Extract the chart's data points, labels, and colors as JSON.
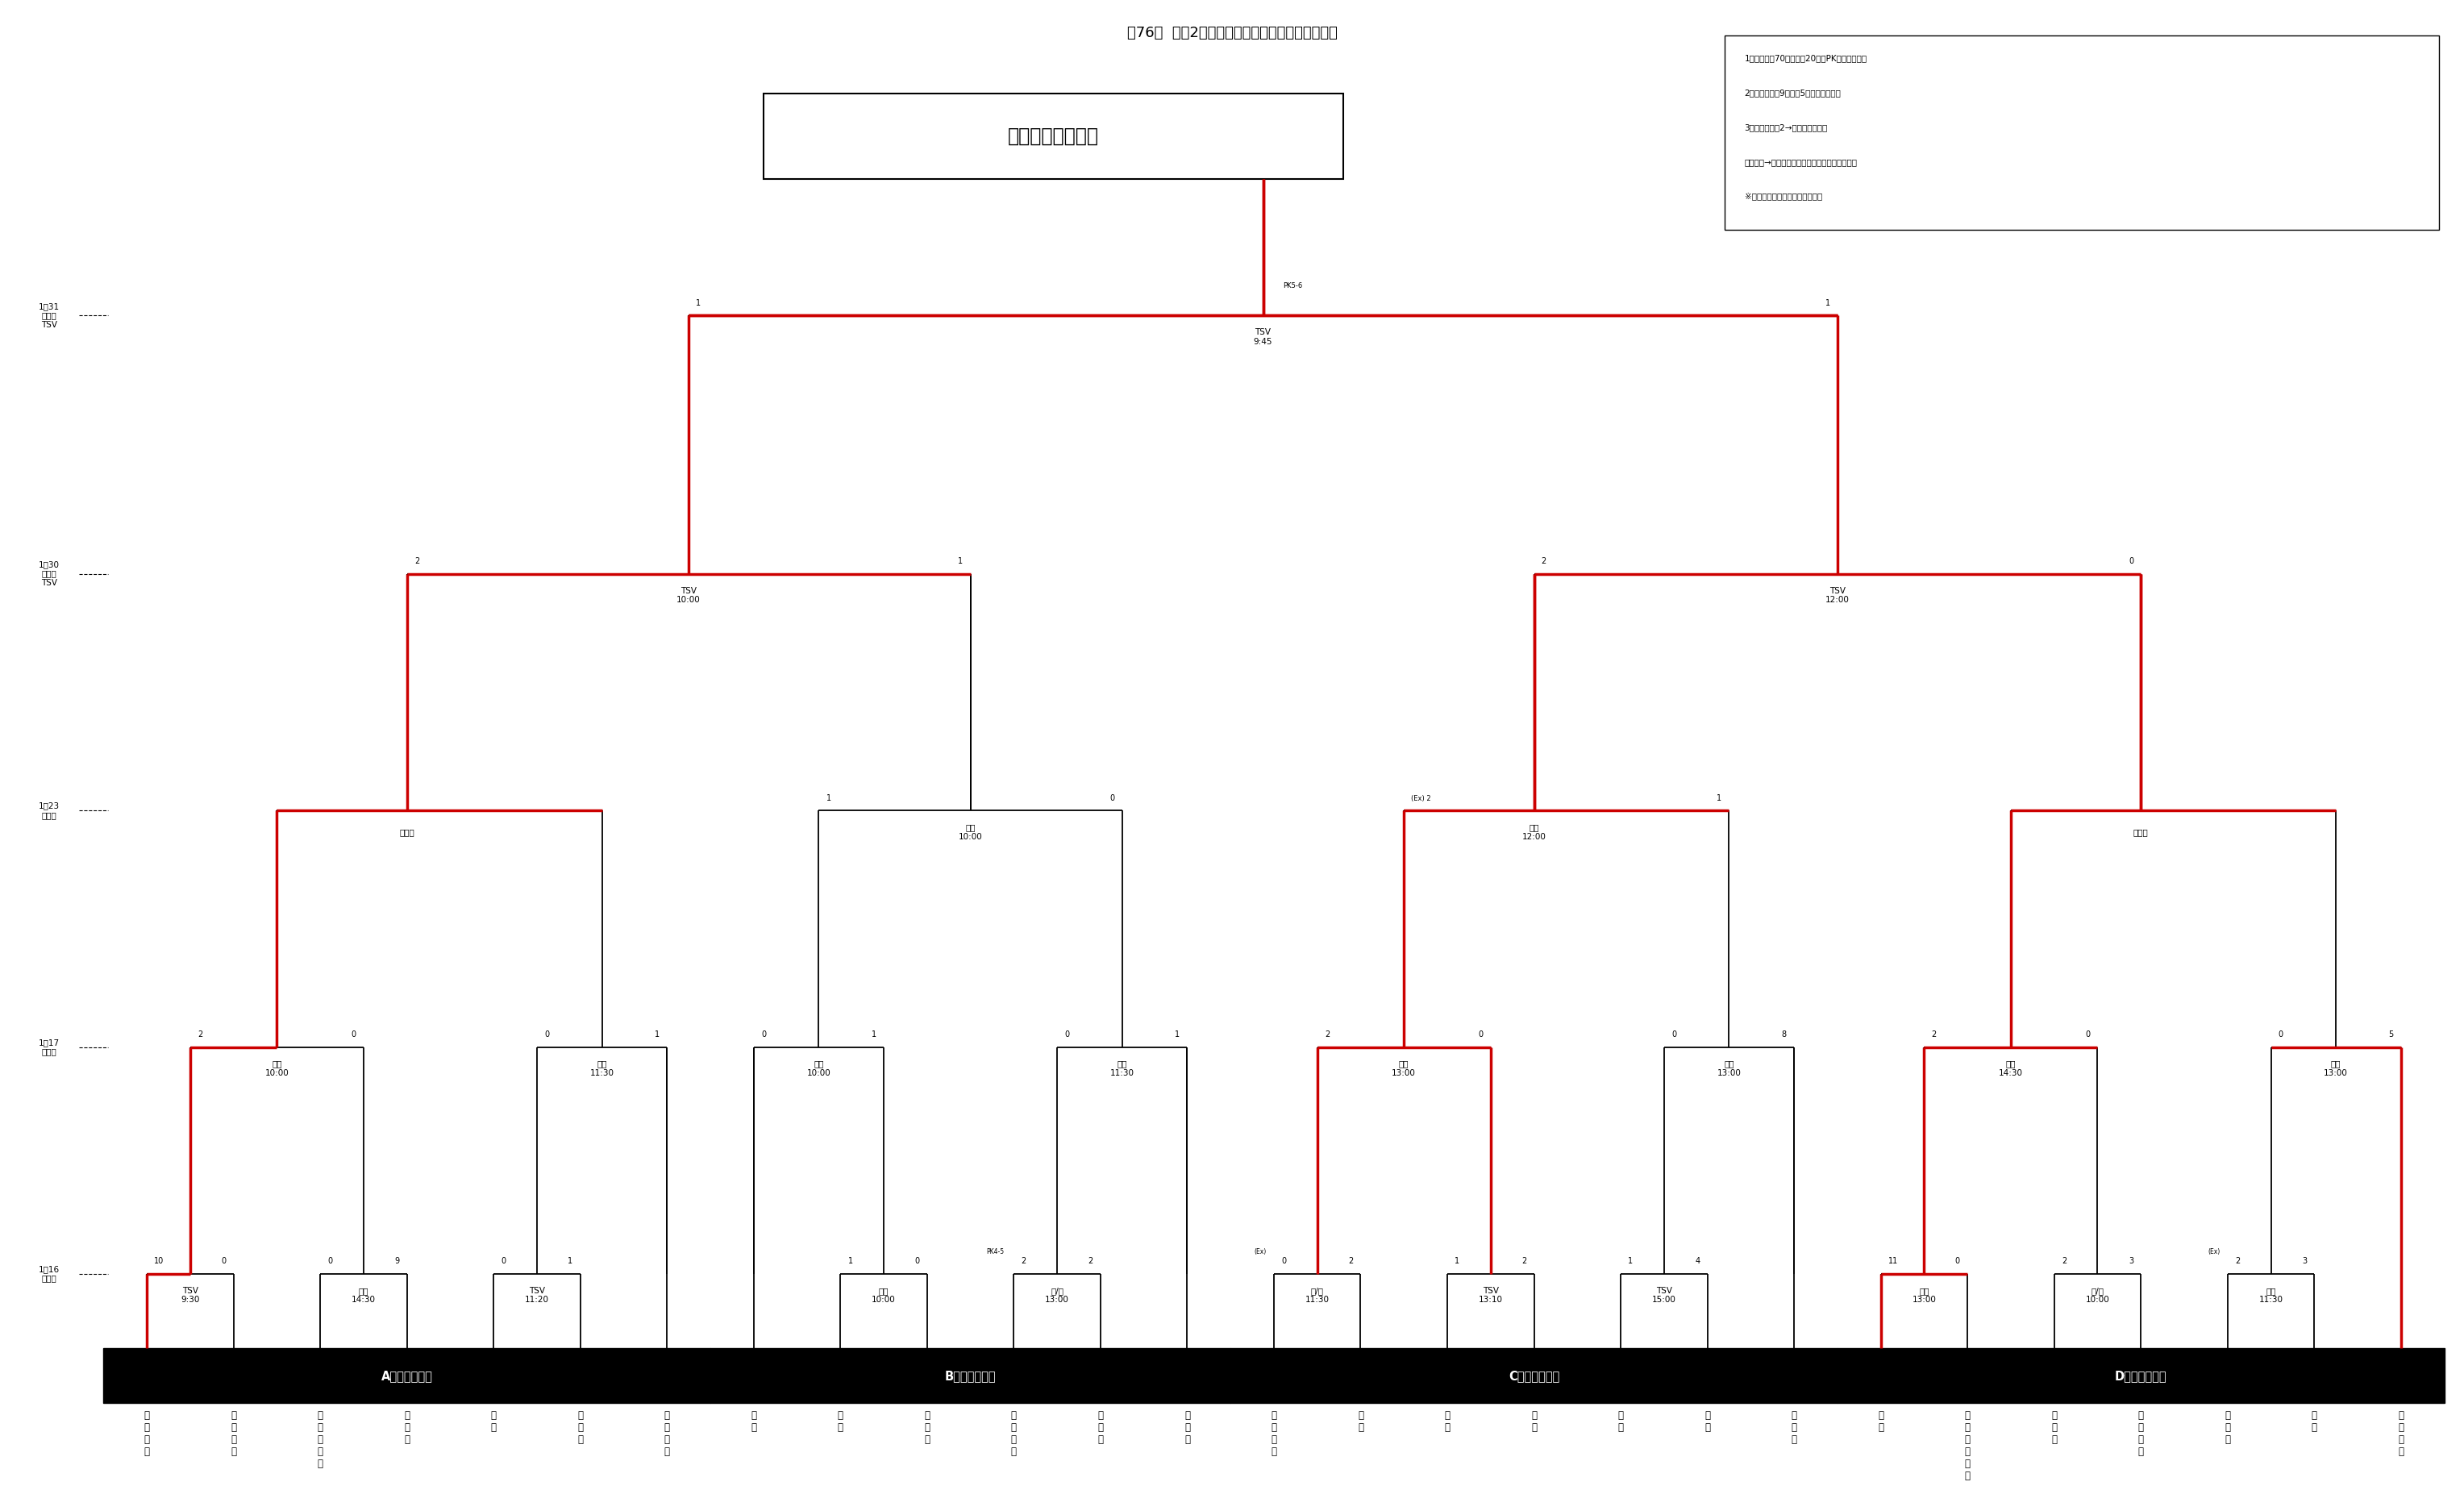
{
  "title": "第76回  令和2年度・徳島県高校サッカー新人大会",
  "champion": "徳島科学技術高校",
  "notes": [
    "1）試合時間70分・延長20分・PK方式とする。",
    "2）交代は登録9名の内5名までとする。",
    "3）警告　累積2→次回戦出場停止",
    "　　退場→次回戦出場停止、以後規律委員会決定",
    "※　会場美化に協力して下さい。"
  ],
  "bg": "#ffffff",
  "red": "#cc0000",
  "black": "#000000",
  "zone_labels": [
    "Aゾーン",
    "Bゾーン",
    "Cゾーン",
    "Dゾーン"
  ],
  "team_labels": {
    "A": [
      "徳\n島\n市\n立",
      "徳\n島\n商\n業",
      "名\n西\n・\n城\n西",
      "阿\n南\n光",
      "脇\n町",
      "富\n岡\n東",
      "生\n光\n学\n園"
    ],
    "B": [
      "池\n田",
      "川\n島",
      "吉\n野\n川",
      "徳\n島\n文\n理",
      "富\n岡\n西",
      "小\n松\n島"
    ],
    "C": [
      "徳\n島\n科\n技",
      "城\n北",
      "城\n南",
      "板\n野",
      "海\n部",
      "城\n東",
      "徳\n島\n北"
    ],
    "D": [
      "鳴\n門",
      "池\n田\n辻\n・\n穴\n吹",
      "城\nノ\n内",
      "阿\n南\n高\n専",
      "つ\nる\nぎ",
      "阿\n波",
      "鳴\n門\n渦\n潮"
    ]
  }
}
